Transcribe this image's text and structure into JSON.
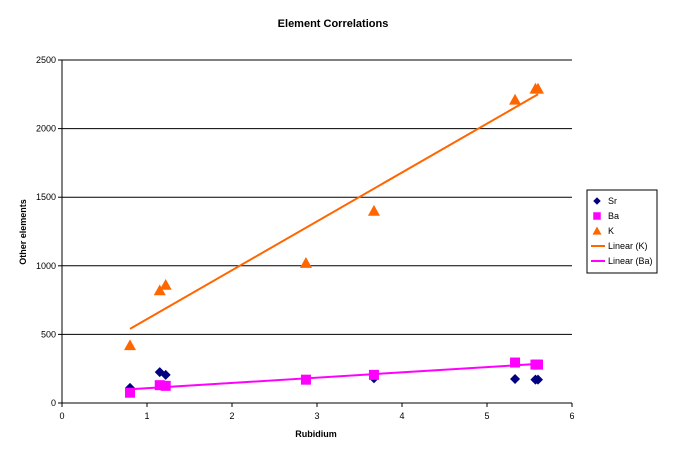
{
  "chart_data": {
    "type": "scatter",
    "title": "Element Correlations",
    "xlabel": "Rubidium",
    "ylabel": "Other elements",
    "xlim": [
      0,
      6
    ],
    "ylim": [
      0,
      2500
    ],
    "x_ticks": [
      "0",
      "1",
      "2",
      "3",
      "4",
      "5",
      "6"
    ],
    "y_ticks": [
      "0",
      "500",
      "1000",
      "1500",
      "2000",
      "2500"
    ],
    "grid": "horizontal",
    "legend_position": "right",
    "series": [
      {
        "name": "Sr",
        "marker": "diamond",
        "color": "#000080",
        "points": [
          [
            0.8,
            110
          ],
          [
            1.15,
            225
          ],
          [
            1.22,
            205
          ],
          [
            3.67,
            180
          ],
          [
            5.33,
            175
          ],
          [
            5.57,
            170
          ],
          [
            5.6,
            170
          ]
        ]
      },
      {
        "name": "Ba",
        "marker": "square",
        "color": "#FF00FF",
        "points": [
          [
            0.8,
            75
          ],
          [
            1.15,
            130
          ],
          [
            1.22,
            125
          ],
          [
            2.87,
            170
          ],
          [
            3.67,
            205
          ],
          [
            5.33,
            295
          ],
          [
            5.57,
            280
          ],
          [
            5.6,
            280
          ]
        ]
      },
      {
        "name": "K",
        "marker": "triangle",
        "color": "#FF6600",
        "points": [
          [
            0.8,
            420
          ],
          [
            1.15,
            820
          ],
          [
            1.22,
            860
          ],
          [
            2.87,
            1020
          ],
          [
            3.67,
            1400
          ],
          [
            5.33,
            2210
          ],
          [
            5.57,
            2290
          ],
          [
            5.6,
            2290
          ]
        ]
      }
    ],
    "trendlines": [
      {
        "name": "Linear (K)",
        "color": "#FF6600",
        "from": [
          0.8,
          540
        ],
        "to": [
          5.6,
          2250
        ]
      },
      {
        "name": "Linear (Ba)",
        "color": "#FF00FF",
        "from": [
          0.8,
          100
        ],
        "to": [
          5.6,
          285
        ]
      }
    ]
  }
}
